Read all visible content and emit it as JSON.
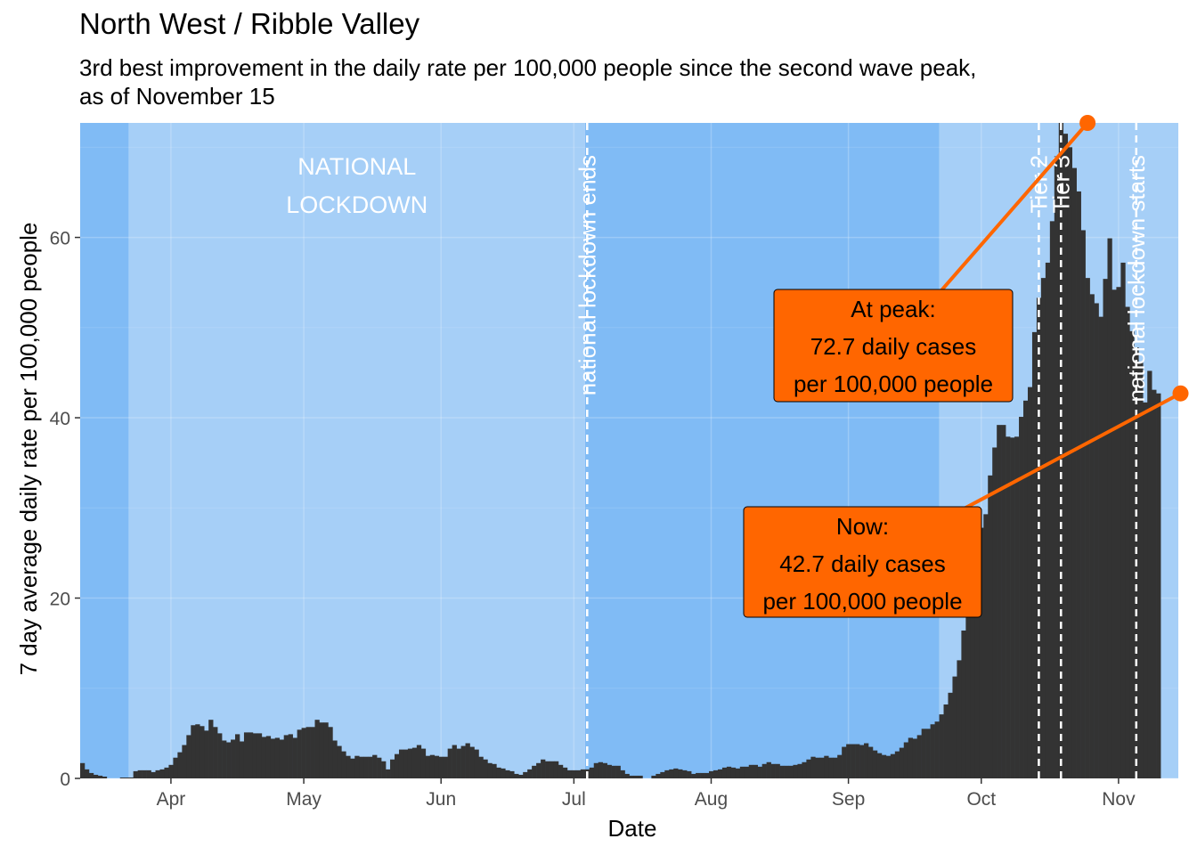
{
  "header": {
    "title": "North West / Ribble Valley",
    "subtitle_line1": "3rd best improvement in the daily rate per 100,000 people since the second wave peak,",
    "subtitle_line2": "as of November 15"
  },
  "chart_data": {
    "type": "bar",
    "xlabel": "Date",
    "ylabel": "7 day average daily rate per 100,000 people",
    "x_range": [
      "2020-03-12",
      "2020-11-15"
    ],
    "ylim": [
      0,
      72.7
    ],
    "y_ticks": [
      0,
      20,
      40,
      60
    ],
    "x_ticks": [
      {
        "date": "2020-04-01",
        "label": "Apr"
      },
      {
        "date": "2020-05-01",
        "label": "May"
      },
      {
        "date": "2020-06-01",
        "label": "Jun"
      },
      {
        "date": "2020-07-01",
        "label": "Jul"
      },
      {
        "date": "2020-08-01",
        "label": "Aug"
      },
      {
        "date": "2020-09-01",
        "label": "Sep"
      },
      {
        "date": "2020-10-01",
        "label": "Oct"
      },
      {
        "date": "2020-11-01",
        "label": "Nov"
      }
    ],
    "grid": true,
    "colors": {
      "panel_dark": "#80bbf5",
      "panel_light": "#a6cff7",
      "bars": "#333333",
      "annotation": "#ff6600"
    },
    "shaded_periods": [
      {
        "start": "2020-03-12",
        "end": "2020-03-23",
        "tone": "dark"
      },
      {
        "start": "2020-03-23",
        "end": "2020-07-04",
        "tone": "light",
        "label_line1": "NATIONAL",
        "label_line2": "LOCKDOWN"
      },
      {
        "start": "2020-07-04",
        "end": "2020-09-22",
        "tone": "dark"
      },
      {
        "start": "2020-09-22",
        "end": "2020-11-15",
        "tone": "light"
      }
    ],
    "events": [
      {
        "date": "2020-07-04",
        "label": "national lockdown ends"
      },
      {
        "date": "2020-10-14",
        "label": "Tier 2"
      },
      {
        "date": "2020-10-19",
        "label": "Tier 3"
      },
      {
        "date": "2020-11-05",
        "label": "national lockdown starts"
      }
    ],
    "daily_values": [
      1.7,
      1.0,
      0.6,
      0.4,
      0.3,
      0.2,
      0.0,
      0.0,
      0.0,
      0.1,
      0.1,
      0.1,
      0.8,
      0.9,
      0.9,
      0.9,
      0.7,
      0.9,
      1.0,
      1.2,
      1.5,
      2.3,
      2.9,
      3.7,
      4.8,
      5.9,
      6.0,
      5.8,
      5.3,
      6.5,
      5.7,
      5.0,
      4.2,
      4.0,
      4.3,
      4.9,
      4.1,
      5.1,
      5.1,
      5.0,
      5.0,
      4.6,
      4.7,
      4.4,
      4.5,
      4.3,
      4.8,
      4.9,
      4.5,
      5.4,
      5.6,
      5.7,
      5.7,
      6.5,
      6.2,
      6.2,
      5.7,
      4.2,
      3.6,
      3.0,
      2.5,
      2.2,
      2.5,
      2.4,
      2.4,
      2.4,
      2.6,
      2.3,
      1.9,
      1.0,
      2.1,
      2.7,
      3.2,
      3.2,
      3.3,
      3.4,
      3.7,
      3.3,
      2.5,
      2.6,
      2.5,
      2.4,
      2.4,
      3.3,
      3.7,
      3.3,
      3.6,
      3.9,
      3.5,
      3.2,
      2.4,
      2.1,
      1.7,
      1.6,
      1.2,
      1.1,
      0.9,
      0.8,
      0.5,
      0.4,
      0.7,
      1.0,
      1.4,
      1.7,
      2.1,
      1.9,
      1.9,
      1.9,
      1.5,
      1.2,
      0.9,
      0.9,
      0.9,
      1.0,
      1.0,
      1.2,
      1.7,
      1.8,
      1.7,
      1.5,
      1.4,
      1.4,
      0.9,
      0.5,
      0.3,
      0.3,
      0.3,
      0.0,
      0.0,
      0.3,
      0.5,
      0.7,
      0.9,
      1.0,
      1.1,
      1.0,
      0.9,
      0.8,
      0.5,
      0.6,
      0.6,
      0.6,
      0.8,
      0.9,
      1.0,
      1.2,
      1.3,
      1.2,
      1.1,
      1.3,
      1.3,
      1.5,
      1.5,
      1.3,
      1.6,
      1.8,
      1.6,
      1.6,
      1.4,
      1.4,
      1.4,
      1.5,
      1.6,
      1.8,
      2.1,
      2.4,
      2.3,
      2.3,
      2.5,
      2.3,
      2.3,
      2.6,
      3.5,
      3.8,
      3.8,
      3.8,
      3.7,
      3.9,
      3.5,
      3.1,
      2.8,
      2.6,
      2.5,
      2.7,
      3.0,
      3.4,
      4.0,
      4.5,
      4.4,
      4.8,
      5.5,
      5.5,
      6.0,
      6.3,
      7.1,
      8.2,
      9.5,
      11.3,
      13.1,
      16.4,
      19.8,
      24.5,
      27.1,
      27.8,
      29.3,
      33.6,
      36.7,
      39.2,
      39.2,
      37.9,
      37.8,
      37.9,
      40.1,
      41.9,
      43.4,
      49.5,
      53.3,
      55.5,
      57.2,
      61.8,
      69.0,
      72.7,
      71.5,
      70.0,
      67.7,
      65.1,
      60.8,
      55.5,
      53.7,
      52.7,
      51.2,
      55.4,
      59.9,
      54.2,
      54.5,
      57.2,
      52.3,
      49.6,
      47.8,
      46.1,
      41.7,
      45.2,
      43.1,
      42.7
    ],
    "peak": {
      "date": "2020-10-25",
      "value": 72.7,
      "label_line1": "At peak:",
      "label_line2": "72.7 daily cases",
      "label_line3": "per 100,000 people"
    },
    "now": {
      "date": "2020-11-15",
      "value": 42.7,
      "label_line1": "Now:",
      "label_line2": "42.7 daily cases",
      "label_line3": "per 100,000 people"
    }
  }
}
